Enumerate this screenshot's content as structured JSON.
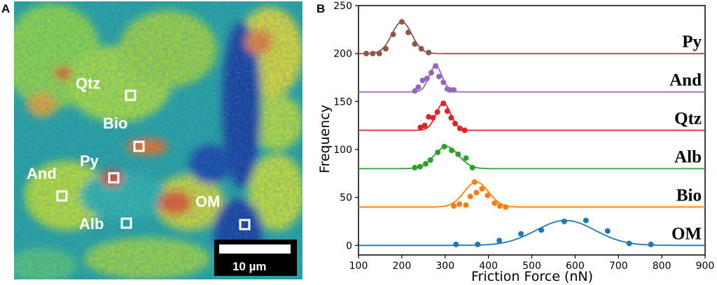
{
  "panel_a": {
    "letter": "A",
    "labels": [
      "Qtz",
      "Bio",
      "Py",
      "And",
      "OM",
      "Alb"
    ],
    "scale_bar": "10 µm"
  },
  "chart_data": {
    "type": "line",
    "panel_letter": "B",
    "title": "",
    "xlabel": "Friction Force (nN)",
    "ylabel": "Frequency",
    "xlim": [
      100,
      900
    ],
    "ylim": [
      -10,
      250
    ],
    "xticks": [
      100,
      200,
      300,
      400,
      500,
      600,
      700,
      800,
      900
    ],
    "yticks": [
      0,
      50,
      100,
      150,
      200,
      250
    ],
    "grid": false,
    "series": [
      {
        "name": "Py",
        "color": "#8c564b",
        "baseline": 200,
        "peak_x": 200,
        "amplitude": 33,
        "sigma": 23,
        "points": [
          [
            118,
            200
          ],
          [
            133,
            200
          ],
          [
            148,
            200
          ],
          [
            163,
            205
          ],
          [
            180,
            220
          ],
          [
            200,
            233
          ],
          [
            215,
            222
          ],
          [
            230,
            210
          ],
          [
            245,
            205
          ],
          [
            262,
            201
          ]
        ]
      },
      {
        "name": "And",
        "color": "#9467bd",
        "baseline": 160,
        "peak_x": 278,
        "amplitude": 27,
        "sigma": 15,
        "points": [
          [
            230,
            161
          ],
          [
            238,
            165
          ],
          [
            248,
            172
          ],
          [
            258,
            174
          ],
          [
            268,
            180
          ],
          [
            278,
            187
          ],
          [
            286,
            176
          ],
          [
            296,
            170
          ],
          [
            305,
            163
          ],
          [
            312,
            162
          ],
          [
            320,
            162
          ]
        ]
      },
      {
        "name": "Qtz",
        "color": "#d62728",
        "baseline": 120,
        "peak_x": 296,
        "amplitude": 28,
        "sigma": 17,
        "points": [
          [
            243,
            123
          ],
          [
            253,
            125
          ],
          [
            262,
            134
          ],
          [
            272,
            133
          ],
          [
            282,
            139
          ],
          [
            296,
            148
          ],
          [
            305,
            140
          ],
          [
            314,
            133
          ],
          [
            323,
            127
          ],
          [
            334,
            122
          ],
          [
            345,
            120
          ]
        ]
      },
      {
        "name": "Alb",
        "color": "#2ca02c",
        "baseline": 80,
        "peak_x": 303,
        "amplitude": 23,
        "sigma": 28,
        "points": [
          [
            230,
            81
          ],
          [
            242,
            82
          ],
          [
            255,
            85
          ],
          [
            266,
            89
          ],
          [
            283,
            97
          ],
          [
            298,
            103
          ],
          [
            315,
            99
          ],
          [
            330,
            95
          ],
          [
            348,
            91
          ],
          [
            363,
            81
          ]
        ]
      },
      {
        "name": "Bio",
        "color": "#ff7f0e",
        "baseline": 40,
        "peak_x": 372,
        "amplitude": 26,
        "sigma": 28,
        "points": [
          [
            320,
            41
          ],
          [
            333,
            43
          ],
          [
            348,
            42
          ],
          [
            358,
            51
          ],
          [
            372,
            55
          ],
          [
            368,
            66
          ],
          [
            385,
            59
          ],
          [
            398,
            52
          ],
          [
            414,
            44
          ],
          [
            426,
            41
          ],
          [
            440,
            40
          ]
        ]
      },
      {
        "name": "OM",
        "color": "#1f77b4",
        "baseline": 0,
        "peak_x": 578,
        "amplitude": 26,
        "sigma": 68,
        "points": [
          [
            325,
            1
          ],
          [
            375,
            1
          ],
          [
            425,
            5
          ],
          [
            475,
            12
          ],
          [
            522,
            16
          ],
          [
            575,
            25
          ],
          [
            625,
            26
          ],
          [
            675,
            15
          ],
          [
            725,
            2
          ],
          [
            775,
            1
          ]
        ]
      }
    ]
  }
}
